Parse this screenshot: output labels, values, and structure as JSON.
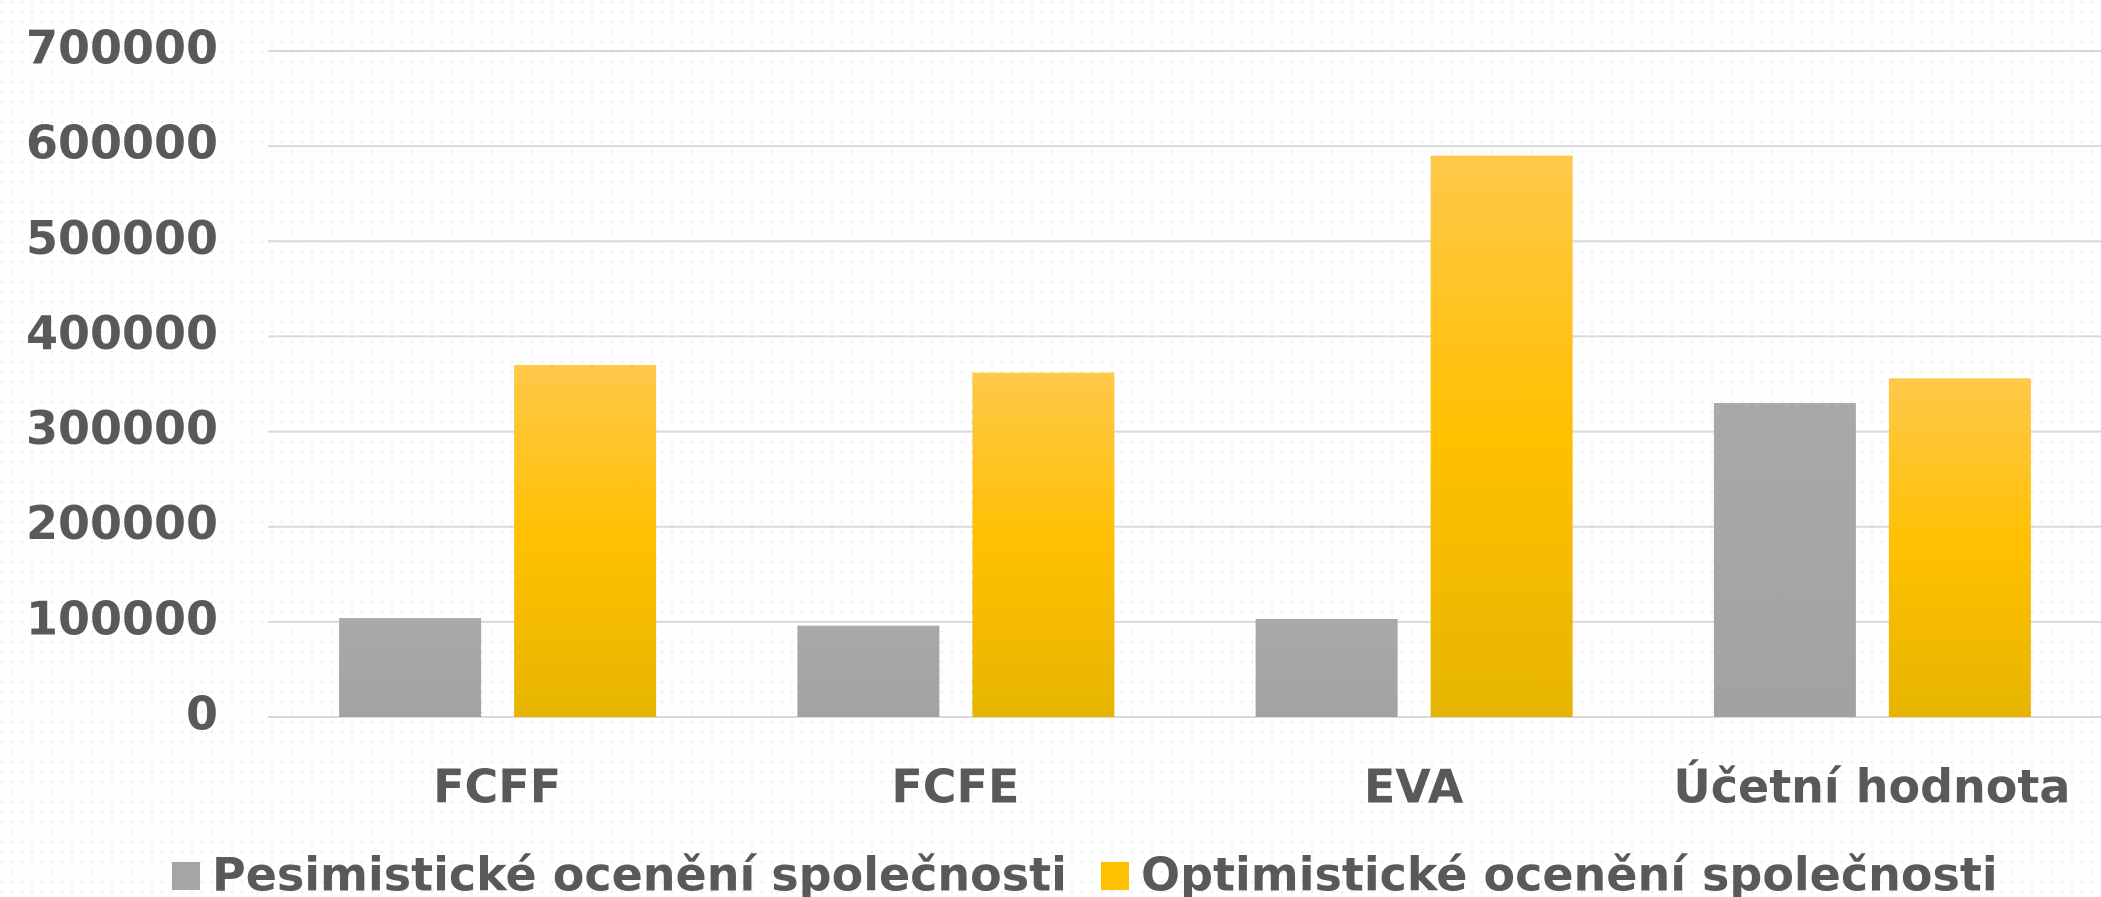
{
  "chart_data": {
    "type": "bar",
    "categories": [
      "FCFF",
      "FCFE",
      "EVA",
      "Účetní hodnota"
    ],
    "series": [
      {
        "name": "Pesimistické ocenění společnosti",
        "color": "#a5a5a5",
        "values": [
          104000,
          96000,
          103000,
          330000
        ]
      },
      {
        "name": "Optimistické ocenění společnosti",
        "color": "#ffc000",
        "values": [
          370000,
          362000,
          590000,
          356000
        ]
      }
    ],
    "ylim": [
      0,
      700000
    ],
    "yticks": [
      0,
      100000,
      200000,
      300000,
      400000,
      500000,
      600000,
      700000
    ],
    "grid": true,
    "legend": "bottom"
  }
}
